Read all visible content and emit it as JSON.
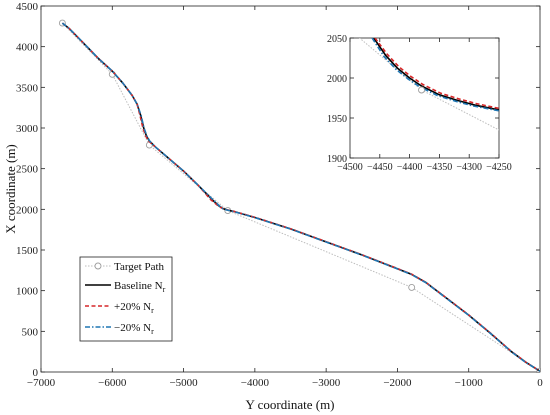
{
  "chart_data": {
    "type": "line",
    "title": "",
    "xlabel": "Y coordinate (m)",
    "ylabel": "X coordinate (m)",
    "xlim": [
      -7000,
      0
    ],
    "ylim": [
      0,
      4500
    ],
    "xticks": [
      "-7000",
      "-6000",
      "-5000",
      "-4000",
      "-3000",
      "-2000",
      "-1000",
      "0"
    ],
    "yticks": [
      "0",
      "500",
      "1000",
      "1500",
      "2000",
      "2500",
      "3000",
      "3500",
      "4000",
      "4500"
    ],
    "grid": false,
    "legend_position": "bottom-left",
    "legend": [
      {
        "main": "Target Path",
        "sub": ""
      },
      {
        "main": "Baseline N",
        "sub": "r"
      },
      {
        "main": "+20% N",
        "sub": "r"
      },
      {
        "main": "−20% N",
        "sub": "r"
      }
    ],
    "colors": {
      "target": "#bdbdbd",
      "baseline": "#000000",
      "plus20": "#d62728",
      "minus20": "#1f77b4"
    },
    "series": [
      {
        "name": "Target Path",
        "style": "gray-dotted-with-circle-markers",
        "x": [
          -6700,
          -6000,
          -5480,
          -4380,
          -1800,
          0
        ],
        "y": [
          4290,
          3660,
          2790,
          1985,
          1040,
          10
        ]
      },
      {
        "name": "Baseline Nr",
        "style": "solid",
        "x": [
          -6700,
          -6600,
          -6400,
          -6200,
          -6000,
          -5850,
          -5720,
          -5650,
          -5600,
          -5560,
          -5520,
          -5480,
          -5400,
          -5200,
          -5000,
          -4800,
          -4600,
          -4500,
          -4450,
          -4400,
          -4350,
          -4300,
          -4000,
          -3500,
          -3000,
          -2500,
          -2000,
          -1800,
          -1600,
          -1300,
          -1000,
          -700,
          -400,
          -200,
          0
        ],
        "y": [
          4290,
          4220,
          4040,
          3860,
          3700,
          3550,
          3400,
          3290,
          3150,
          3000,
          2900,
          2840,
          2770,
          2620,
          2470,
          2300,
          2120,
          2040,
          2010,
          1995,
          1985,
          1975,
          1900,
          1760,
          1600,
          1440,
          1270,
          1200,
          1100,
          900,
          700,
          480,
          250,
          120,
          10
        ]
      },
      {
        "name": "+20% Nr",
        "style": "dashed",
        "x": [
          -6700,
          -6600,
          -6400,
          -6200,
          -6000,
          -5850,
          -5720,
          -5650,
          -5610,
          -5570,
          -5530,
          -5490,
          -5400,
          -5200,
          -5000,
          -4800,
          -4620,
          -4510,
          -4455,
          -4400,
          -4350,
          -4300,
          -4000,
          -3500,
          -3000,
          -2500,
          -2000,
          -1800,
          -1600,
          -1300,
          -1000,
          -700,
          -400,
          -200,
          0
        ],
        "y": [
          4290,
          4220,
          4040,
          3860,
          3700,
          3550,
          3400,
          3290,
          3150,
          3000,
          2900,
          2840,
          2770,
          2620,
          2470,
          2300,
          2120,
          2040,
          2012,
          1997,
          1987,
          1977,
          1902,
          1762,
          1602,
          1442,
          1272,
          1202,
          1102,
          902,
          702,
          482,
          252,
          122,
          10
        ]
      },
      {
        "name": "−20% Nr",
        "style": "dash-dot",
        "x": [
          -6700,
          -6600,
          -6400,
          -6200,
          -6000,
          -5850,
          -5720,
          -5650,
          -5595,
          -5555,
          -5515,
          -5475,
          -5400,
          -5200,
          -5000,
          -4800,
          -4590,
          -4495,
          -4448,
          -4400,
          -4350,
          -4300,
          -4000,
          -3500,
          -3000,
          -2500,
          -2000,
          -1800,
          -1600,
          -1300,
          -1000,
          -700,
          -400,
          -200,
          0
        ],
        "y": [
          4290,
          4220,
          4040,
          3860,
          3700,
          3550,
          3400,
          3290,
          3150,
          3000,
          2900,
          2840,
          2770,
          2620,
          2470,
          2300,
          2120,
          2040,
          2008,
          1993,
          1983,
          1973,
          1898,
          1758,
          1598,
          1438,
          1268,
          1198,
          1098,
          898,
          698,
          478,
          248,
          118,
          10
        ]
      }
    ],
    "inset": {
      "xlim": [
        -4500,
        -4250
      ],
      "ylim": [
        1900,
        2050
      ],
      "xticks": [
        "-4500",
        "-4450",
        "-4400",
        "-4350",
        "-4300",
        "-4250"
      ],
      "yticks": [
        "1900",
        "1950",
        "2000",
        "2050"
      ],
      "series": [
        {
          "name": "Target Path",
          "x": [
            -4500,
            -4380,
            -4250
          ],
          "y": [
            2060,
            1985,
            1935
          ]
        },
        {
          "name": "Baseline Nr",
          "x": [
            -4460,
            -4440,
            -4420,
            -4400,
            -4380,
            -4350,
            -4320,
            -4290,
            -4250
          ],
          "y": [
            2050,
            2028,
            2012,
            2000,
            1990,
            1979,
            1972,
            1966,
            1960
          ]
        },
        {
          "name": "+20% Nr",
          "x": [
            -4458,
            -4438,
            -4418,
            -4398,
            -4378,
            -4348,
            -4318,
            -4288,
            -4250
          ],
          "y": [
            2050,
            2030,
            2014,
            2002,
            1992,
            1981,
            1974,
            1968,
            1962
          ]
        },
        {
          "name": "−20% Nr",
          "x": [
            -4463,
            -4443,
            -4423,
            -4403,
            -4383,
            -4353,
            -4323,
            -4293,
            -4250
          ],
          "y": [
            2050,
            2027,
            2011,
            1999,
            1989,
            1978,
            1971,
            1965,
            1959
          ]
        }
      ]
    }
  }
}
